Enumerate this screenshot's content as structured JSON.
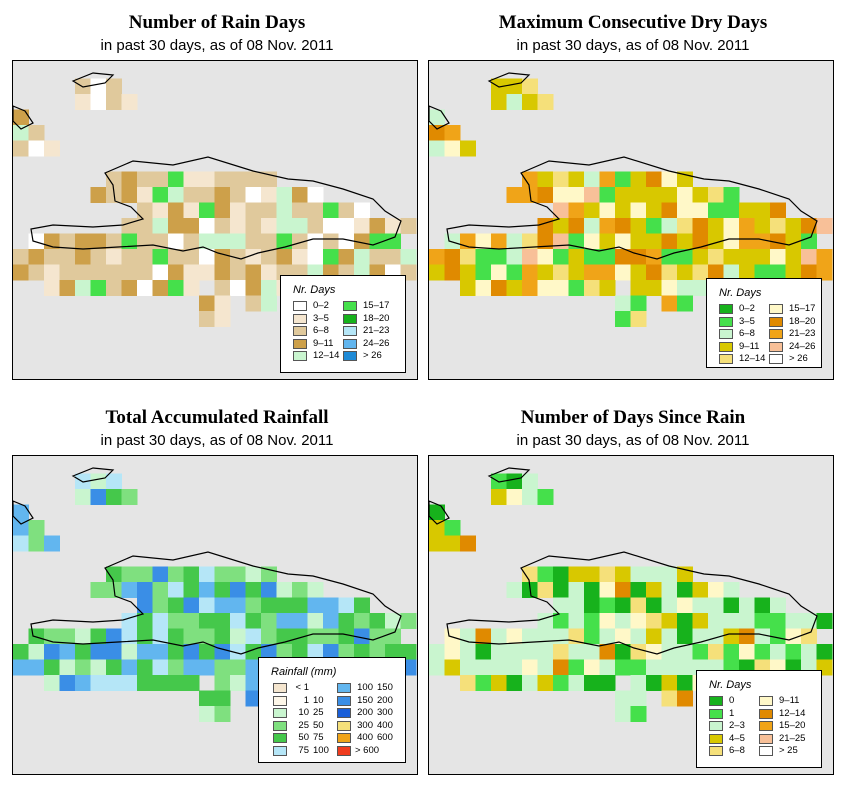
{
  "panels": [
    {
      "title": "Number of Rain Days",
      "subtitle": "in past 30 days, as of  08 Nov. 2011",
      "legend_title": "Nr. Days",
      "legend_type": "simple",
      "legend_items": [
        {
          "label": "0–2",
          "color": "#ffffff"
        },
        {
          "label": "3–5",
          "color": "#f5e6cf"
        },
        {
          "label": "6–8",
          "color": "#e0c99c"
        },
        {
          "label": "9–11",
          "color": "#cda04a"
        },
        {
          "label": "12–14",
          "color": "#c9f5cf"
        },
        {
          "label": "15–17",
          "color": "#45e04b"
        },
        {
          "label": "18–20",
          "color": "#17b21c"
        },
        {
          "label": "21–23",
          "color": "#b5e6f7"
        },
        {
          "label": "24–26",
          "color": "#62b6ef"
        },
        {
          "label": "> 26",
          "color": "#1e8ad6"
        }
      ]
    },
    {
      "title": "Maximum Consecutive Dry Days",
      "subtitle": "in past 30 days, as of  08 Nov. 2011",
      "legend_title": "Nr. Days",
      "legend_type": "simple",
      "legend_items": [
        {
          "label": "0–2",
          "color": "#17b21c"
        },
        {
          "label": "3–5",
          "color": "#45e04b"
        },
        {
          "label": "6–8",
          "color": "#c9f5cf"
        },
        {
          "label": "9–11",
          "color": "#d8c800"
        },
        {
          "label": "12–14",
          "color": "#f5e07a"
        },
        {
          "label": "15–17",
          "color": "#fff8c8"
        },
        {
          "label": "18–20",
          "color": "#e08a00"
        },
        {
          "label": "21–23",
          "color": "#f0a418"
        },
        {
          "label": "24–26",
          "color": "#f8c098"
        },
        {
          "label": "> 26",
          "color": "#ffffff"
        }
      ]
    },
    {
      "title": "Total Accumulated Rainfall",
      "subtitle": "in past 30 days, as of  08 Nov. 2011",
      "legend_title": "Rainfall (mm)",
      "legend_type": "range",
      "legend_items": [
        {
          "lo": "< 1",
          "hi": "",
          "color": "#f5e6cf"
        },
        {
          "lo": "1",
          "hi": "10",
          "color": "#fdf6e8"
        },
        {
          "lo": "10",
          "hi": "25",
          "color": "#c9f5cf"
        },
        {
          "lo": "25",
          "hi": "50",
          "color": "#7fe07f"
        },
        {
          "lo": "50",
          "hi": "75",
          "color": "#45c84b"
        },
        {
          "lo": "75",
          "hi": "100",
          "color": "#b5e6f7"
        },
        {
          "lo": "100",
          "hi": "150",
          "color": "#62b6ef"
        },
        {
          "lo": "150",
          "hi": "200",
          "color": "#3a8ee6"
        },
        {
          "lo": "200",
          "hi": "300",
          "color": "#1a5fd8"
        },
        {
          "lo": "300",
          "hi": "400",
          "color": "#f5e07a"
        },
        {
          "lo": "400",
          "hi": "600",
          "color": "#f0a418"
        },
        {
          "lo": "> 600",
          "hi": "",
          "color": "#f03c1e"
        }
      ]
    },
    {
      "title": "Number of Days Since Rain",
      "subtitle": "in past 30 days, as of  08 Nov. 2011",
      "legend_title": "Nr. Days",
      "legend_type": "simple",
      "legend_items": [
        {
          "label": "0",
          "color": "#17b21c"
        },
        {
          "label": "1",
          "color": "#45e04b"
        },
        {
          "label": "2–3",
          "color": "#c9f5cf"
        },
        {
          "label": "4–5",
          "color": "#d8c800"
        },
        {
          "label": "6–8",
          "color": "#f5e07a"
        },
        {
          "label": "9–11",
          "color": "#fff8c8"
        },
        {
          "label": "12–14",
          "color": "#e08a00"
        },
        {
          "label": "15–20",
          "color": "#f0a418"
        },
        {
          "label": "21–25",
          "color": "#f8c098"
        },
        {
          "label": "> 25",
          "color": "#ffffff"
        }
      ]
    }
  ]
}
